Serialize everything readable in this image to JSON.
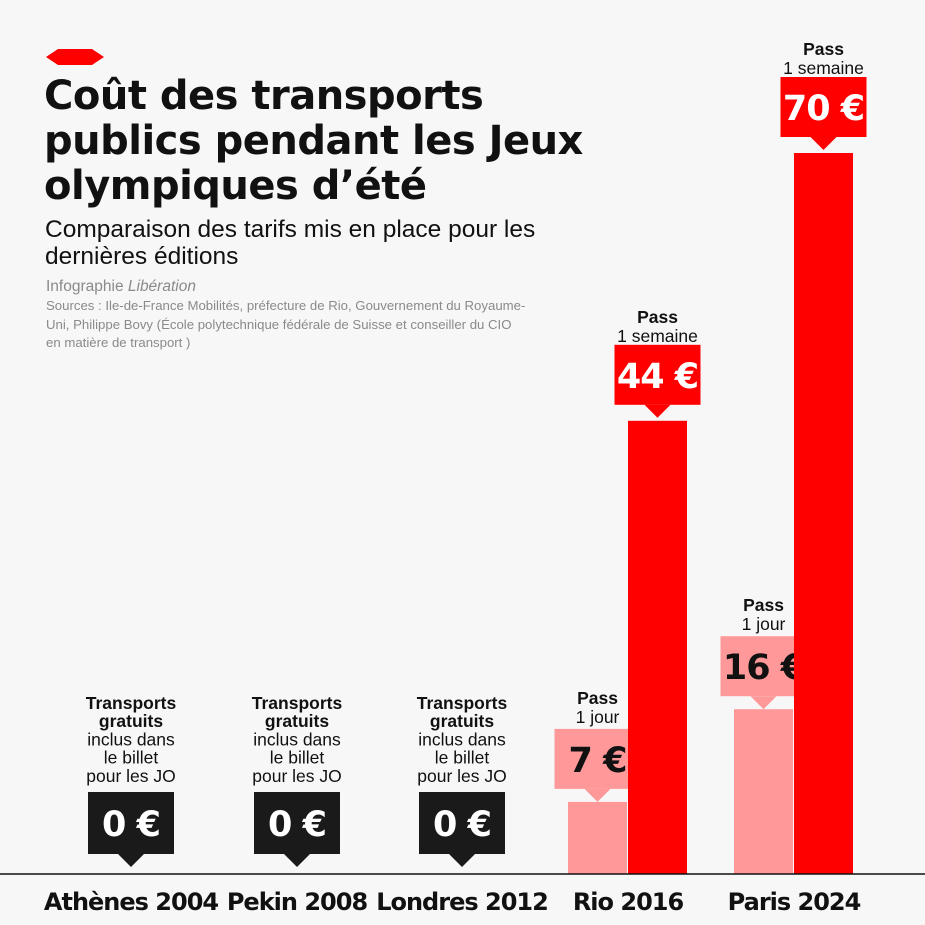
{
  "header": {
    "title": "Coût des transports publics pendant les Jeux olympiques d’été",
    "subtitle": "Comparaison des tarifs mis en place pour les dernières éditions",
    "credit_prefix": "Infographie",
    "credit_brand": "Libération",
    "sources": "Sources : Ile-de-France Mobilités, préfecture de Rio, Gouvernement du Royaume-Uni, Philippe Bovy (École polytechnique fédérale de Suisse et conseiller du CIO en matière de transport )"
  },
  "colors": {
    "brand_red": "#ff0000",
    "light_red": "#ff9999",
    "dark_box": "#1a1a1a",
    "text": "#111111",
    "background": "#f7f7f7"
  },
  "chart_data": {
    "type": "bar",
    "title": "Coût des transports publics pendant les Jeux olympiques d’été",
    "xlabel": "",
    "ylabel": "",
    "unit": "€",
    "ylim": [
      0,
      72
    ],
    "grid": false,
    "categories": [
      "Athènes 2004",
      "Pekin 2008",
      "Londres 2012",
      "Rio 2016",
      "Paris 2024"
    ],
    "series": [
      {
        "name": "Transports gratuits inclus dans le billet pour les JO",
        "values": [
          0,
          0,
          0,
          null,
          null
        ],
        "labels": [
          "0 €",
          "0 €",
          "0 €",
          null,
          null
        ]
      },
      {
        "name": "Pass 1 jour",
        "values": [
          null,
          null,
          null,
          7,
          16
        ],
        "labels": [
          null,
          null,
          null,
          "7 €",
          "16 €"
        ]
      },
      {
        "name": "Pass 1 semaine",
        "values": [
          null,
          null,
          null,
          44,
          70
        ],
        "labels": [
          null,
          null,
          null,
          "44 €",
          "70 €"
        ]
      }
    ],
    "annotations": {
      "free": {
        "bold": [
          "Transports",
          "gratuits"
        ],
        "regular": [
          "inclus dans",
          "le billet",
          "pour les JO"
        ]
      },
      "day": {
        "bold": "Pass",
        "regular": "1 jour"
      },
      "week": {
        "bold": "Pass",
        "regular": "1 semaine"
      }
    }
  }
}
